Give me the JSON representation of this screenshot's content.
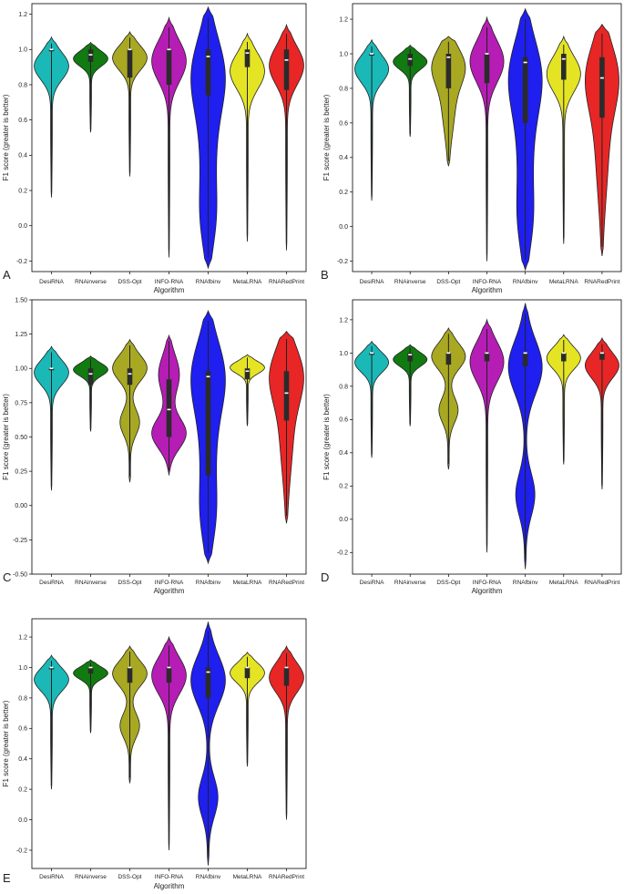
{
  "chart_data": [
    {
      "type": "violin",
      "panel_label": "A",
      "xlabel": "Algorithm",
      "ylabel": "F1 score (greater is better)",
      "ylim": [
        -0.26,
        1.26
      ],
      "yticks": [
        "-0.2",
        "0.0",
        "0.2",
        "0.4",
        "0.6",
        "0.8",
        "1.0",
        "1.2"
      ],
      "ytick_values": [
        -0.2,
        0.0,
        0.2,
        0.4,
        0.6,
        0.8,
        1.0,
        1.2
      ],
      "categories": [
        "DesiRNA",
        "RNAinverse",
        "DSS-Opt",
        "INFO-RNA",
        "RNAfbinv",
        "MetaLRNA",
        "RNARedPrint"
      ],
      "series": [
        {
          "color": "#1bb8b8",
          "min": 0.16,
          "max": 1.07,
          "q1": 1.0,
          "median": 1.0,
          "q3": 1.0,
          "shape": "top-heavy"
        },
        {
          "color": "#117a11",
          "min": 0.53,
          "max": 1.04,
          "q1": 0.93,
          "median": 0.97,
          "q3": 1.0,
          "shape": "top-heavy"
        },
        {
          "color": "#a8a822",
          "min": 0.28,
          "max": 1.1,
          "q1": 0.84,
          "median": 1.0,
          "q3": 1.0,
          "shape": "top-heavy"
        },
        {
          "color": "#b51db5",
          "min": -0.18,
          "max": 1.18,
          "q1": 0.8,
          "median": 1.0,
          "q3": 1.0,
          "shape": "top-heavy"
        },
        {
          "color": "#1f1ff0",
          "min": -0.24,
          "max": 1.24,
          "q1": 0.74,
          "median": 0.96,
          "q3": 1.0,
          "shape": "tall"
        },
        {
          "color": "#e4e424",
          "min": -0.09,
          "max": 1.09,
          "q1": 0.9,
          "median": 0.98,
          "q3": 1.0,
          "shape": "top-heavy"
        },
        {
          "color": "#e82626",
          "min": -0.14,
          "max": 1.14,
          "q1": 0.77,
          "median": 0.94,
          "q3": 1.0,
          "shape": "top-heavy"
        }
      ]
    },
    {
      "type": "violin",
      "panel_label": "B",
      "xlabel": "Algorithm",
      "ylabel": "F1 score (greater is better)",
      "ylim": [
        -0.26,
        1.29
      ],
      "yticks": [
        "-0.2",
        "0.0",
        "0.2",
        "0.4",
        "0.6",
        "0.8",
        "1.0",
        "1.2"
      ],
      "ytick_values": [
        -0.2,
        0.0,
        0.2,
        0.4,
        0.6,
        0.8,
        1.0,
        1.2
      ],
      "categories": [
        "DesiRNA",
        "RNAinverse",
        "DSS-Opt",
        "INFO-RNA",
        "RNAfbinv",
        "MetaLRNA",
        "RNARedPrint"
      ],
      "series": [
        {
          "color": "#1bb8b8",
          "min": 0.15,
          "max": 1.08,
          "q1": 1.0,
          "median": 1.0,
          "q3": 1.0,
          "shape": "top-heavy"
        },
        {
          "color": "#117a11",
          "min": 0.52,
          "max": 1.05,
          "q1": 0.93,
          "median": 0.97,
          "q3": 1.0,
          "shape": "top-heavy"
        },
        {
          "color": "#a8a822",
          "min": 0.35,
          "max": 1.1,
          "q1": 0.8,
          "median": 0.98,
          "q3": 1.0,
          "shape": "mid"
        },
        {
          "color": "#b51db5",
          "min": -0.2,
          "max": 1.21,
          "q1": 0.83,
          "median": 1.0,
          "q3": 1.0,
          "shape": "top-heavy"
        },
        {
          "color": "#1f1ff0",
          "min": -0.25,
          "max": 1.26,
          "q1": 0.6,
          "median": 0.95,
          "q3": 0.98,
          "shape": "tall"
        },
        {
          "color": "#e4e424",
          "min": -0.1,
          "max": 1.1,
          "q1": 0.85,
          "median": 0.97,
          "q3": 1.0,
          "shape": "top-heavy"
        },
        {
          "color": "#e82626",
          "min": -0.17,
          "max": 1.17,
          "q1": 0.63,
          "median": 0.86,
          "q3": 0.98,
          "shape": "mid"
        }
      ]
    },
    {
      "type": "violin",
      "panel_label": "C",
      "xlabel": "Algorithm",
      "ylabel": "F1 score (greater is better)",
      "ylim": [
        -0.5,
        1.5
      ],
      "yticks": [
        "-0.50",
        "-0.25",
        "0.00",
        "0.25",
        "0.50",
        "0.75",
        "1.00",
        "1.25",
        "1.50"
      ],
      "ytick_values": [
        -0.5,
        -0.25,
        0.0,
        0.25,
        0.5,
        0.75,
        1.0,
        1.25,
        1.5
      ],
      "categories": [
        "DesiRNA",
        "RNAinverse",
        "DSS-Opt",
        "INFO-RNA",
        "RNAfbinv",
        "MetaLRNA",
        "RNARedPrint"
      ],
      "series": [
        {
          "color": "#1bb8b8",
          "min": 0.11,
          "max": 1.16,
          "q1": 1.0,
          "median": 1.0,
          "q3": 1.0,
          "shape": "top-heavy"
        },
        {
          "color": "#117a11",
          "min": 0.54,
          "max": 1.09,
          "q1": 0.88,
          "median": 0.96,
          "q3": 1.0,
          "shape": "top-heavy"
        },
        {
          "color": "#a8a822",
          "min": 0.17,
          "max": 1.21,
          "q1": 0.88,
          "median": 0.96,
          "q3": 1.0,
          "shape": "bimodal"
        },
        {
          "color": "#b51db5",
          "min": 0.22,
          "max": 1.24,
          "q1": 0.5,
          "median": 0.7,
          "q3": 0.92,
          "shape": "bottom-heavy"
        },
        {
          "color": "#1f1ff0",
          "min": -0.42,
          "max": 1.42,
          "q1": 0.22,
          "median": 0.94,
          "q3": 0.98,
          "shape": "tall"
        },
        {
          "color": "#e4e424",
          "min": 0.58,
          "max": 1.1,
          "q1": 0.92,
          "median": 0.98,
          "q3": 1.0,
          "shape": "top-heavy"
        },
        {
          "color": "#e82626",
          "min": -0.13,
          "max": 1.27,
          "q1": 0.62,
          "median": 0.82,
          "q3": 0.98,
          "shape": "mid"
        }
      ]
    },
    {
      "type": "violin",
      "panel_label": "D",
      "xlabel": "Algorithm",
      "ylabel": "F1 score (greater is better)",
      "ylim": [
        -0.33,
        1.32
      ],
      "yticks": [
        "-0.2",
        "0.0",
        "0.2",
        "0.4",
        "0.6",
        "0.8",
        "1.0",
        "1.2"
      ],
      "ytick_values": [
        -0.2,
        0.0,
        0.2,
        0.4,
        0.6,
        0.8,
        1.0,
        1.2
      ],
      "categories": [
        "DesiRNA",
        "RNAinverse",
        "DSS-Opt",
        "INFO-RNA",
        "RNAfbinv",
        "MetaLRNA",
        "RNARedPrint"
      ],
      "series": [
        {
          "color": "#1bb8b8",
          "min": 0.37,
          "max": 1.07,
          "q1": 1.0,
          "median": 1.0,
          "q3": 1.0,
          "shape": "top-heavy"
        },
        {
          "color": "#117a11",
          "min": 0.56,
          "max": 1.05,
          "q1": 0.95,
          "median": 0.99,
          "q3": 1.0,
          "shape": "top-heavy"
        },
        {
          "color": "#a8a822",
          "min": 0.3,
          "max": 1.15,
          "q1": 0.93,
          "median": 1.0,
          "q3": 1.0,
          "shape": "bimodal"
        },
        {
          "color": "#b51db5",
          "min": -0.2,
          "max": 1.2,
          "q1": 0.95,
          "median": 1.0,
          "q3": 1.0,
          "shape": "top-heavy"
        },
        {
          "color": "#1f1ff0",
          "min": -0.3,
          "max": 1.3,
          "q1": 0.92,
          "median": 1.0,
          "q3": 1.0,
          "shape": "bimodal-wide"
        },
        {
          "color": "#e4e424",
          "min": 0.33,
          "max": 1.11,
          "q1": 0.95,
          "median": 1.0,
          "q3": 1.0,
          "shape": "top-heavy"
        },
        {
          "color": "#e82626",
          "min": 0.18,
          "max": 1.09,
          "q1": 0.96,
          "median": 1.0,
          "q3": 1.0,
          "shape": "top-heavy"
        }
      ]
    },
    {
      "type": "violin",
      "panel_label": "E",
      "xlabel": "Algorithm",
      "ylabel": "F1 score (greater is better)",
      "ylim": [
        -0.32,
        1.32
      ],
      "yticks": [
        "-0.2",
        "0.0",
        "0.2",
        "0.4",
        "0.6",
        "0.8",
        "1.0",
        "1.2"
      ],
      "ytick_values": [
        -0.2,
        0.0,
        0.2,
        0.4,
        0.6,
        0.8,
        1.0,
        1.2
      ],
      "categories": [
        "DesiRNA",
        "RNAinverse",
        "DSS-Opt",
        "INFO-RNA",
        "RNAfbinv",
        "MetaLRNA",
        "RNARedPrint"
      ],
      "series": [
        {
          "color": "#1bb8b8",
          "min": 0.2,
          "max": 1.08,
          "q1": 1.0,
          "median": 1.0,
          "q3": 1.0,
          "shape": "top-heavy"
        },
        {
          "color": "#117a11",
          "min": 0.57,
          "max": 1.05,
          "q1": 0.96,
          "median": 1.0,
          "q3": 1.0,
          "shape": "top-heavy"
        },
        {
          "color": "#a8a822",
          "min": 0.24,
          "max": 1.14,
          "q1": 0.9,
          "median": 1.0,
          "q3": 1.0,
          "shape": "bimodal"
        },
        {
          "color": "#b51db5",
          "min": -0.2,
          "max": 1.2,
          "q1": 0.9,
          "median": 1.0,
          "q3": 1.0,
          "shape": "top-heavy"
        },
        {
          "color": "#1f1ff0",
          "min": -0.3,
          "max": 1.3,
          "q1": 0.8,
          "median": 0.97,
          "q3": 1.0,
          "shape": "bimodal-wide"
        },
        {
          "color": "#e4e424",
          "min": 0.35,
          "max": 1.1,
          "q1": 0.93,
          "median": 1.0,
          "q3": 1.0,
          "shape": "top-heavy"
        },
        {
          "color": "#e82626",
          "min": 0.0,
          "max": 1.14,
          "q1": 0.88,
          "median": 1.0,
          "q3": 1.0,
          "shape": "top-heavy"
        }
      ]
    }
  ]
}
